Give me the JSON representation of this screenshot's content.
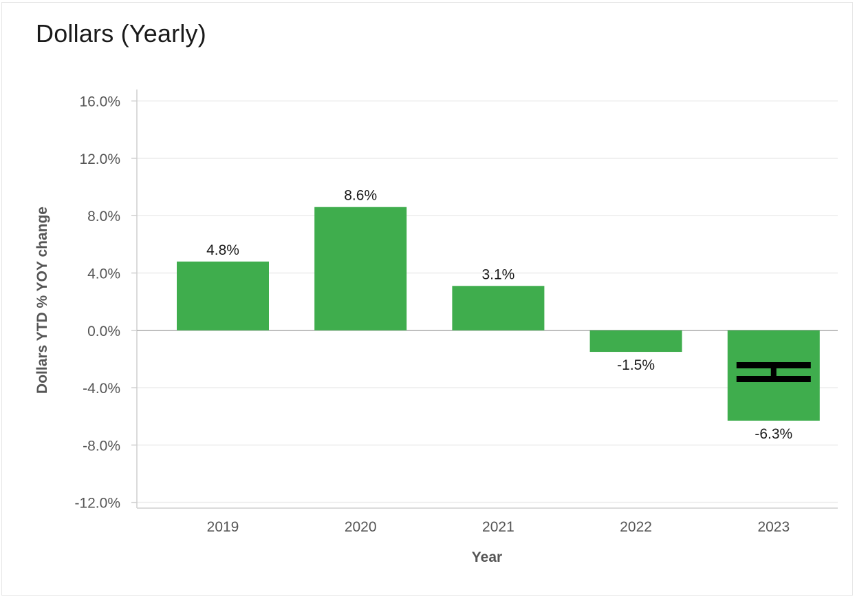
{
  "chart_data": {
    "type": "bar",
    "title": "Dollars (Yearly)",
    "xlabel": "Year",
    "ylabel": "Dollars YTD % YOY change",
    "categories": [
      "2019",
      "2020",
      "2021",
      "2022",
      "2023"
    ],
    "values": [
      4.8,
      8.6,
      3.1,
      -1.5,
      -6.3
    ],
    "data_labels": [
      "4.8%",
      "8.6%",
      "3.1%",
      "-1.5%",
      "-6.3%"
    ],
    "ylim": [
      -12,
      16
    ],
    "yticks": [
      16,
      12,
      8,
      4,
      0,
      -4,
      -8,
      -12
    ],
    "ytick_labels": [
      "16.0%",
      "12.0%",
      "8.0%",
      "4.0%",
      "0.0%",
      "-4.0%",
      "-8.0%",
      "-12.0%"
    ],
    "bar_color": "#3fad4d",
    "grid": true,
    "legend": "none"
  }
}
